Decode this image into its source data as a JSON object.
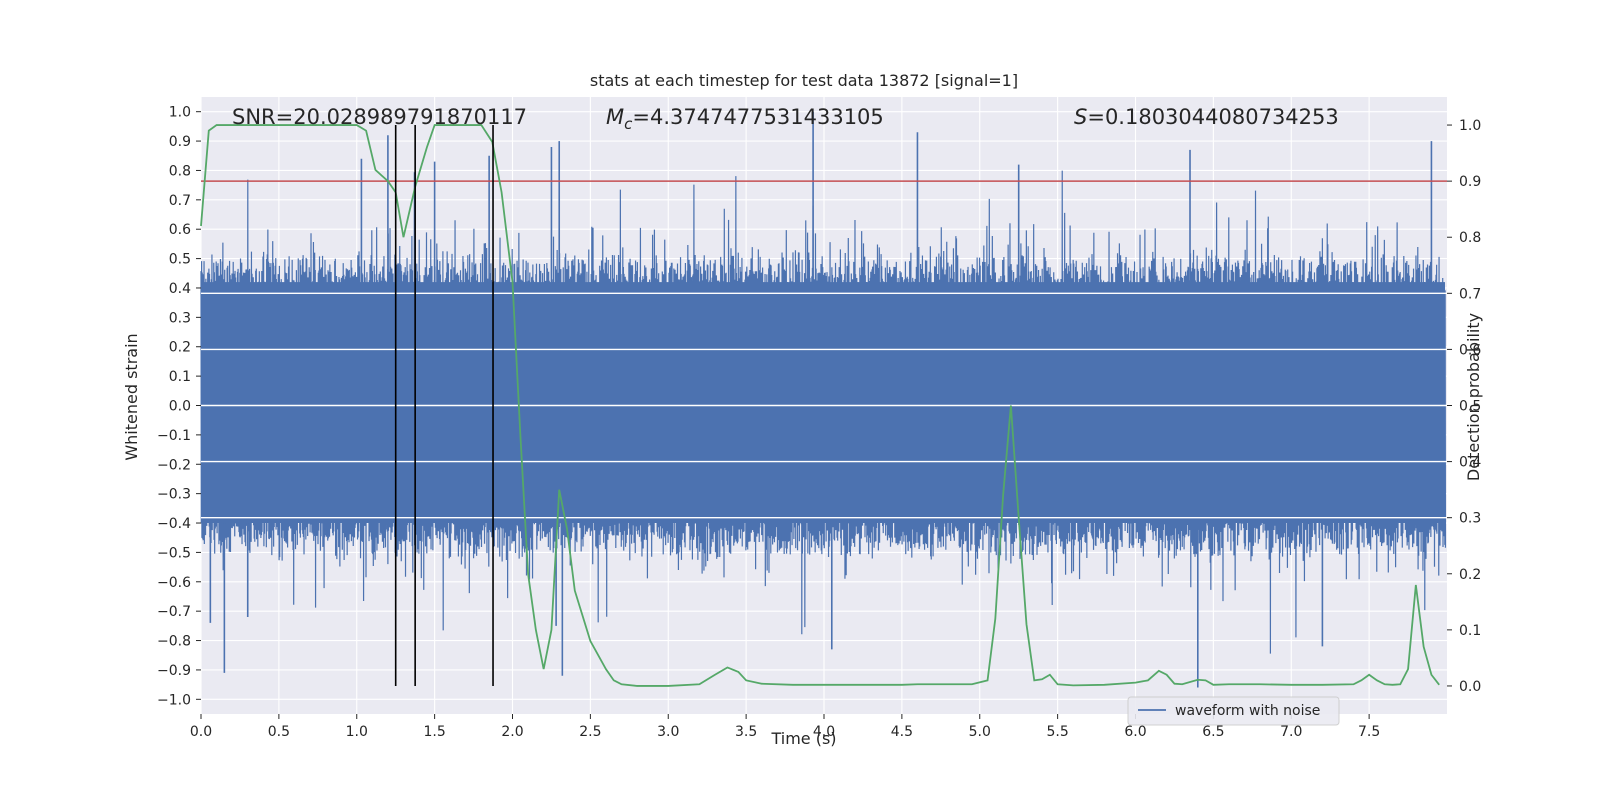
{
  "chart_data": {
    "type": "line",
    "title": "stats at each timestep for test data 13872 [signal=1]",
    "xlabel": "Time (s)",
    "ylabel": "Whitened strain",
    "y2label": "Detection probability",
    "xlim": [
      0.0,
      8.0
    ],
    "ylim": [
      -1.05,
      1.05
    ],
    "y2lim": [
      -0.05,
      1.05
    ],
    "x_ticks": [
      "0.0",
      "0.5",
      "1.0",
      "1.5",
      "2.0",
      "2.5",
      "3.0",
      "3.5",
      "4.0",
      "4.5",
      "5.0",
      "5.5",
      "6.0",
      "6.5",
      "7.0",
      "7.5"
    ],
    "x_tick_values": [
      0.0,
      0.5,
      1.0,
      1.5,
      2.0,
      2.5,
      3.0,
      3.5,
      4.0,
      4.5,
      5.0,
      5.5,
      6.0,
      6.5,
      7.0,
      7.5
    ],
    "y_ticks": [
      "1.0",
      "0.9",
      "0.8",
      "0.7",
      "0.6",
      "0.5",
      "0.4",
      "0.3",
      "0.2",
      "0.1",
      "0.0",
      "−0.1",
      "−0.2",
      "−0.3",
      "−0.4",
      "−0.5",
      "−0.6",
      "−0.7",
      "−0.8",
      "−0.9",
      "−1.0"
    ],
    "y_tick_values": [
      1.0,
      0.9,
      0.8,
      0.7,
      0.6,
      0.5,
      0.4,
      0.3,
      0.2,
      0.1,
      0.0,
      -0.1,
      -0.2,
      -0.3,
      -0.4,
      -0.5,
      -0.6,
      -0.7,
      -0.8,
      -0.9,
      -1.0
    ],
    "y2_ticks": [
      "1.0",
      "0.9",
      "0.8",
      "0.7",
      "0.6",
      "0.5",
      "0.4",
      "0.3",
      "0.2",
      "0.1",
      "0.0"
    ],
    "y2_tick_values": [
      1.0,
      0.9,
      0.8,
      0.7,
      0.6,
      0.5,
      0.4,
      0.3,
      0.2,
      0.1,
      0.0
    ],
    "annotations": {
      "snr": "SNR=20.028989791870117",
      "mc_symbol": "M",
      "mc_subscript": "c",
      "mc_value": "=4.3747477531433105",
      "s_symbol": "S",
      "s_value": "=0.1803044080734253"
    },
    "threshold": {
      "y2": 0.9,
      "color": "#c44e52"
    },
    "vertical_lines": [
      1.25,
      1.375,
      1.875
    ],
    "waveform": {
      "name": "waveform with noise",
      "color": "#4c72b0",
      "t_start": 0.0,
      "t_end": 7.99,
      "n_samples": 4096,
      "core_amplitude": 0.45,
      "max_amplitude": 1.0,
      "peaks": [
        [
          0.15,
          -0.91
        ],
        [
          0.06,
          -0.74
        ],
        [
          1.03,
          0.84
        ],
        [
          1.2,
          0.92
        ],
        [
          1.5,
          0.83
        ],
        [
          1.85,
          0.85
        ],
        [
          2.25,
          0.88
        ],
        [
          2.3,
          0.9
        ],
        [
          2.32,
          -0.92
        ],
        [
          2.28,
          -0.75
        ],
        [
          3.93,
          1.0
        ],
        [
          4.05,
          -0.83
        ],
        [
          4.6,
          0.93
        ],
        [
          5.25,
          0.82
        ],
        [
          6.35,
          0.87
        ],
        [
          6.4,
          -0.96
        ],
        [
          7.2,
          -0.82
        ],
        [
          7.9,
          0.9
        ],
        [
          0.3,
          -0.72
        ]
      ]
    },
    "series": [
      {
        "name": "",
        "color": "#55a868",
        "x": [
          0.0,
          0.05,
          0.1,
          0.2,
          0.4,
          0.6,
          0.8,
          1.0,
          1.06,
          1.12,
          1.2,
          1.25,
          1.3,
          1.375,
          1.45,
          1.5,
          1.6,
          1.7,
          1.8,
          1.87,
          1.93,
          2.0,
          2.05,
          2.1,
          2.15,
          2.2,
          2.25,
          2.3,
          2.35,
          2.4,
          2.5,
          2.6,
          2.65,
          2.7,
          2.8,
          3.0,
          3.2,
          3.3,
          3.38,
          3.45,
          3.5,
          3.6,
          3.8,
          4.0,
          4.2,
          4.5,
          4.6,
          4.8,
          4.95,
          5.05,
          5.1,
          5.15,
          5.2,
          5.25,
          5.3,
          5.35,
          5.4,
          5.45,
          5.5,
          5.6,
          5.8,
          6.0,
          6.08,
          6.15,
          6.2,
          6.25,
          6.3,
          6.4,
          6.45,
          6.5,
          6.6,
          6.8,
          7.0,
          7.2,
          7.4,
          7.45,
          7.5,
          7.55,
          7.6,
          7.65,
          7.7,
          7.75,
          7.8,
          7.85,
          7.9,
          7.95
        ],
        "y": [
          0.82,
          0.99,
          1.0,
          1.0,
          1.0,
          1.0,
          1.0,
          1.0,
          0.99,
          0.92,
          0.9,
          0.88,
          0.8,
          0.89,
          0.96,
          1.0,
          1.0,
          1.0,
          1.0,
          0.97,
          0.88,
          0.72,
          0.45,
          0.2,
          0.1,
          0.03,
          0.1,
          0.35,
          0.28,
          0.17,
          0.08,
          0.03,
          0.01,
          0.003,
          0.0,
          0.0,
          0.003,
          0.02,
          0.033,
          0.025,
          0.01,
          0.004,
          0.002,
          0.002,
          0.002,
          0.002,
          0.003,
          0.003,
          0.003,
          0.01,
          0.12,
          0.34,
          0.5,
          0.3,
          0.11,
          0.01,
          0.012,
          0.02,
          0.003,
          0.001,
          0.002,
          0.006,
          0.01,
          0.027,
          0.02,
          0.004,
          0.003,
          0.011,
          0.01,
          0.002,
          0.003,
          0.003,
          0.002,
          0.002,
          0.003,
          0.01,
          0.02,
          0.01,
          0.003,
          0.002,
          0.003,
          0.03,
          0.18,
          0.07,
          0.02,
          0.002
        ]
      }
    ],
    "legend": {
      "position": "lower-right",
      "entry": "waveform with noise"
    },
    "grid": true
  }
}
